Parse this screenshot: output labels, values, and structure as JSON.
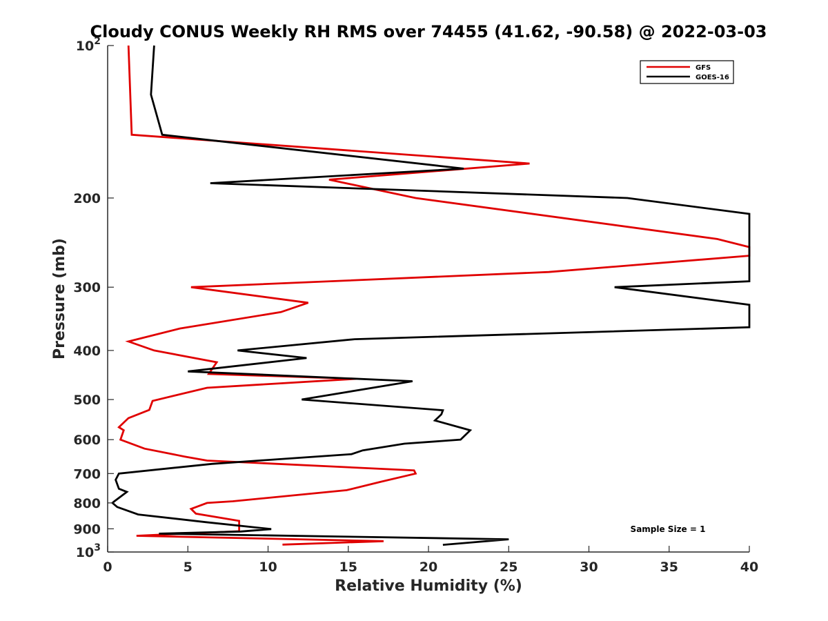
{
  "chart_data": {
    "type": "line",
    "title": "Cloudy CONUS Weekly RH RMS over 74455 (41.62, -90.58) @ 2022-03-03",
    "xlabel": "Relative Humidity (%)",
    "ylabel": "Pressure (mb)",
    "xlim": [
      0,
      40
    ],
    "ylim": [
      100,
      1000
    ],
    "y_scale": "log",
    "y_reversed": true,
    "grid": false,
    "legend_position": "top-right",
    "x_ticks": [
      0,
      5,
      10,
      15,
      20,
      25,
      30,
      35,
      40
    ],
    "y_ticks": [
      {
        "value": 100,
        "label": "10",
        "sup": "2"
      },
      {
        "value": 200,
        "label": "200"
      },
      {
        "value": 300,
        "label": "300"
      },
      {
        "value": 400,
        "label": "400"
      },
      {
        "value": 500,
        "label": "500"
      },
      {
        "value": 600,
        "label": "600"
      },
      {
        "value": 700,
        "label": "700"
      },
      {
        "value": 800,
        "label": "800"
      },
      {
        "value": 900,
        "label": "900"
      },
      {
        "value": 1000,
        "label": "10",
        "sup": "3"
      }
    ],
    "annotation": "Sample Size = 1",
    "series": [
      {
        "name": "GFS",
        "color": "#e00000",
        "points": [
          [
            1.3,
            100
          ],
          [
            1.5,
            150
          ],
          [
            26.3,
            171
          ],
          [
            13.8,
            184
          ],
          [
            19.2,
            200
          ],
          [
            38.0,
            241
          ],
          [
            40.0,
            250
          ],
          [
            40.0,
            260
          ],
          [
            27.5,
            280
          ],
          [
            5.2,
            300
          ],
          [
            12.5,
            322
          ],
          [
            10.8,
            336
          ],
          [
            4.5,
            362
          ],
          [
            1.3,
            384
          ],
          [
            2.9,
            400
          ],
          [
            6.8,
            422
          ],
          [
            6.3,
            445
          ],
          [
            15.5,
            455
          ],
          [
            6.2,
            474
          ],
          [
            2.8,
            503
          ],
          [
            2.6,
            524
          ],
          [
            1.3,
            544
          ],
          [
            0.7,
            567
          ],
          [
            1.0,
            575
          ],
          [
            0.8,
            600
          ],
          [
            2.3,
            625
          ],
          [
            4.8,
            648
          ],
          [
            6.2,
            660
          ],
          [
            19.1,
            690
          ],
          [
            19.2,
            700
          ],
          [
            17.0,
            727
          ],
          [
            14.9,
            755
          ],
          [
            7.8,
            794
          ],
          [
            6.2,
            800
          ],
          [
            5.2,
            822
          ],
          [
            5.5,
            840
          ],
          [
            8.2,
            868
          ],
          [
            8.2,
            910
          ],
          [
            1.8,
            929
          ],
          [
            17.2,
            952
          ],
          [
            10.9,
            967
          ]
        ]
      },
      {
        "name": "GOES-16",
        "color": "#000000",
        "points": [
          [
            2.9,
            100
          ],
          [
            2.7,
            125
          ],
          [
            3.4,
            150
          ],
          [
            22.2,
            175
          ],
          [
            6.4,
            187
          ],
          [
            32.4,
            200
          ],
          [
            40.0,
            215
          ],
          [
            40.0,
            292
          ],
          [
            31.6,
            300
          ],
          [
            40.0,
            325
          ],
          [
            40.0,
            360
          ],
          [
            15.4,
            380
          ],
          [
            8.1,
            400
          ],
          [
            12.4,
            414
          ],
          [
            5.0,
            440
          ],
          [
            19.0,
            460
          ],
          [
            12.1,
            500
          ],
          [
            20.9,
            525
          ],
          [
            20.8,
            535
          ],
          [
            20.4,
            550
          ],
          [
            22.6,
            575
          ],
          [
            22.0,
            600
          ],
          [
            18.5,
            611
          ],
          [
            15.9,
            630
          ],
          [
            15.2,
            641
          ],
          [
            6.5,
            670
          ],
          [
            0.7,
            700
          ],
          [
            0.5,
            720
          ],
          [
            0.7,
            750
          ],
          [
            1.2,
            761
          ],
          [
            0.4,
            795
          ],
          [
            0.3,
            800
          ],
          [
            0.6,
            815
          ],
          [
            1.9,
            843
          ],
          [
            6.1,
            873
          ],
          [
            10.2,
            901
          ],
          [
            8.3,
            911
          ],
          [
            3.2,
            920
          ],
          [
            25.0,
            944
          ],
          [
            20.9,
            968
          ]
        ]
      }
    ]
  }
}
